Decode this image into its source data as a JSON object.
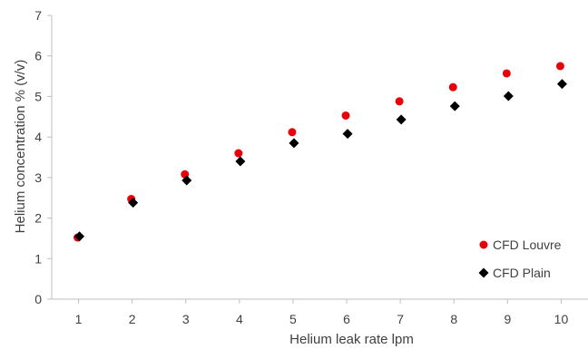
{
  "chart_data": {
    "type": "scatter",
    "title": "",
    "xlabel": "Helium leak rate lpm",
    "ylabel": "Helium concentration % (v/v)",
    "xlim": [
      0.5,
      10.5
    ],
    "ylim": [
      0,
      7
    ],
    "x_ticks": [
      1,
      2,
      3,
      4,
      5,
      6,
      7,
      8,
      9,
      10
    ],
    "y_ticks": [
      0,
      1,
      2,
      3,
      4,
      5,
      6,
      7
    ],
    "grid": false,
    "legend_position": "bottom-right",
    "x": [
      1,
      2,
      3,
      4,
      5,
      6,
      7,
      8,
      9,
      10
    ],
    "series": [
      {
        "name": "CFD Louvre",
        "marker": "circle",
        "color": "#e8000b",
        "values": [
          1.52,
          2.47,
          3.08,
          3.6,
          4.12,
          4.53,
          4.88,
          5.23,
          5.57,
          5.75
        ]
      },
      {
        "name": "CFD Plain",
        "marker": "diamond",
        "color": "#000000",
        "values": [
          1.55,
          2.38,
          2.93,
          3.4,
          3.85,
          4.08,
          4.43,
          4.76,
          5.01,
          5.31
        ]
      }
    ]
  }
}
